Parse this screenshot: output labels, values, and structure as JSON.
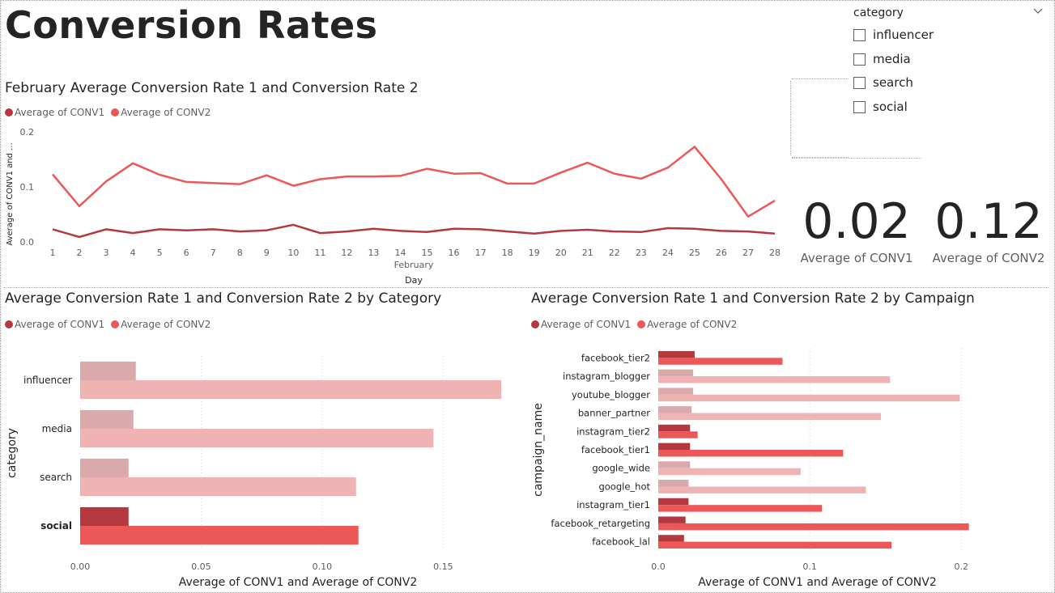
{
  "page": {
    "title": "Conversion Rates"
  },
  "slicer": {
    "header": "category",
    "items": [
      "influencer",
      "media",
      "search",
      "social"
    ]
  },
  "cards": [
    {
      "value": "0.02",
      "label": "Average of CONV1"
    },
    {
      "value": "0.12",
      "label": "Average of CONV2"
    }
  ],
  "colors": {
    "conv1": "#b3393e",
    "conv2": "#ec5757",
    "conv1_faded": "#d9a9ac",
    "conv2_faded": "#f0b3b3"
  },
  "line_visual": {
    "title": "February Average Conversion Rate 1 and Conversion Rate 2"
  },
  "category_visual": {
    "title": "Average Conversion Rate 1 and Conversion Rate 2 by Category"
  },
  "campaign_visual": {
    "title": "Average Conversion Rate 1 and Conversion Rate 2 by Campaign"
  },
  "chart_data": [
    {
      "type": "line",
      "title": "February Average Conversion Rate 1 and Conversion Rate 2",
      "xlabel": "Day",
      "xlabel_group": "February",
      "ylabel": "Average of CONV1 and ...",
      "x": [
        1,
        2,
        3,
        4,
        5,
        6,
        7,
        8,
        9,
        10,
        11,
        12,
        13,
        14,
        15,
        16,
        17,
        18,
        19,
        20,
        21,
        22,
        23,
        24,
        25,
        26,
        27,
        28
      ],
      "ylim": [
        0,
        0.2
      ],
      "yticks": [
        "0.0",
        "0.1",
        "0.2"
      ],
      "series": [
        {
          "name": "Average of CONV1",
          "color": "#b3393e",
          "values": [
            0.023,
            0.009,
            0.023,
            0.016,
            0.023,
            0.021,
            0.023,
            0.019,
            0.021,
            0.031,
            0.016,
            0.019,
            0.024,
            0.02,
            0.018,
            0.024,
            0.023,
            0.019,
            0.015,
            0.02,
            0.022,
            0.019,
            0.018,
            0.025,
            0.024,
            0.02,
            0.019,
            0.015
          ]
        },
        {
          "name": "Average of CONV2",
          "color": "#ec5757",
          "values": [
            0.123,
            0.065,
            0.11,
            0.143,
            0.122,
            0.109,
            0.107,
            0.105,
            0.121,
            0.102,
            0.114,
            0.119,
            0.119,
            0.12,
            0.133,
            0.124,
            0.125,
            0.106,
            0.106,
            0.126,
            0.144,
            0.124,
            0.115,
            0.135,
            0.173,
            0.114,
            0.046,
            0.075
          ]
        }
      ],
      "legend": "top-left",
      "grid": false
    },
    {
      "type": "bar",
      "orientation": "horizontal",
      "title": "Average Conversion Rate 1 and Conversion Rate 2 by Category",
      "xlabel": "Average of CONV1 and Average of CONV2",
      "ylabel": "category",
      "categories": [
        "influencer",
        "media",
        "search",
        "social"
      ],
      "highlighted": [
        "social"
      ],
      "xlim": [
        0,
        0.18
      ],
      "xticks": [
        "0.00",
        "0.05",
        "0.10",
        "0.15"
      ],
      "series": [
        {
          "name": "Average of CONV1",
          "values": [
            0.023,
            0.022,
            0.02,
            0.02
          ]
        },
        {
          "name": "Average of CONV2",
          "values": [
            0.174,
            0.146,
            0.114,
            0.115
          ]
        }
      ],
      "legend": "top-left",
      "grid": true
    },
    {
      "type": "bar",
      "orientation": "horizontal",
      "title": "Average Conversion Rate 1 and Conversion Rate 2 by Campaign",
      "xlabel": "Average of CONV1 and Average of CONV2",
      "ylabel": "campaign_name",
      "categories": [
        "facebook_tier2",
        "instagram_blogger",
        "youtube_blogger",
        "banner_partner",
        "instagram_tier2",
        "facebook_tier1",
        "google_wide",
        "google_hot",
        "instagram_tier1",
        "facebook_retargeting",
        "facebook_lal"
      ],
      "highlighted": [
        "facebook_tier2",
        "instagram_tier2",
        "facebook_tier1",
        "instagram_tier1",
        "facebook_retargeting",
        "facebook_lal"
      ],
      "xlim": [
        0,
        0.21
      ],
      "xticks": [
        "0.0",
        "0.1",
        "0.2"
      ],
      "series": [
        {
          "name": "Average of CONV1",
          "values": [
            0.024,
            0.023,
            0.023,
            0.022,
            0.021,
            0.021,
            0.021,
            0.02,
            0.02,
            0.018,
            0.017
          ]
        },
        {
          "name": "Average of CONV2",
          "values": [
            0.082,
            0.153,
            0.199,
            0.147,
            0.026,
            0.122,
            0.094,
            0.137,
            0.108,
            0.205,
            0.154
          ]
        }
      ],
      "legend": "top-left",
      "grid": true
    }
  ]
}
